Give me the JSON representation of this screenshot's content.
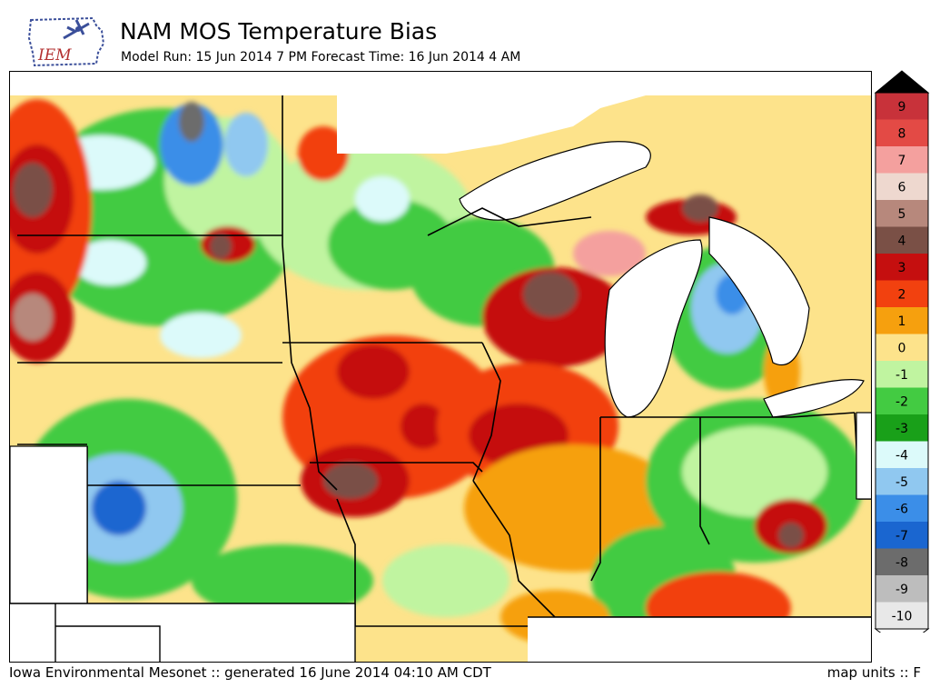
{
  "header": {
    "logo_text": "IEM",
    "title": "NAM MOS Temperature Bias",
    "subtitle": "Model Run: 15 Jun 2014 7 PM Forecast Time: 16 Jun 2014 4 AM"
  },
  "footer": {
    "credit": "Iowa Environmental Mesonet :: generated 16 June 2014 04:10 AM CDT",
    "units": "map units :: F"
  },
  "legend": {
    "levels": [
      {
        "label": "9",
        "color": "#c8323a"
      },
      {
        "label": "8",
        "color": "#e34a45"
      },
      {
        "label": "7",
        "color": "#f4a09e"
      },
      {
        "label": "6",
        "color": "#eed8cf"
      },
      {
        "label": "5",
        "color": "#b7887c"
      },
      {
        "label": "4",
        "color": "#7a5046"
      },
      {
        "label": "3",
        "color": "#c50f0f"
      },
      {
        "label": "2",
        "color": "#f2410f"
      },
      {
        "label": "1",
        "color": "#f6a00e"
      },
      {
        "label": "0",
        "color": "#fde38b"
      },
      {
        "label": "-1",
        "color": "#c0f4a0"
      },
      {
        "label": "-2",
        "color": "#43cb42"
      },
      {
        "label": "-3",
        "color": "#19a019"
      },
      {
        "label": "-4",
        "color": "#dcfafa"
      },
      {
        "label": "-5",
        "color": "#90c8f0"
      },
      {
        "label": "-6",
        "color": "#3b8ee8"
      },
      {
        "label": "-7",
        "color": "#1a66d0"
      },
      {
        "label": "-8",
        "color": "#6c6c6c"
      },
      {
        "label": "-9",
        "color": "#bdbdbd"
      },
      {
        "label": "-10",
        "color": "#e8e8e8"
      }
    ],
    "over_color": "#000000",
    "under_color": "#ffffff"
  }
}
